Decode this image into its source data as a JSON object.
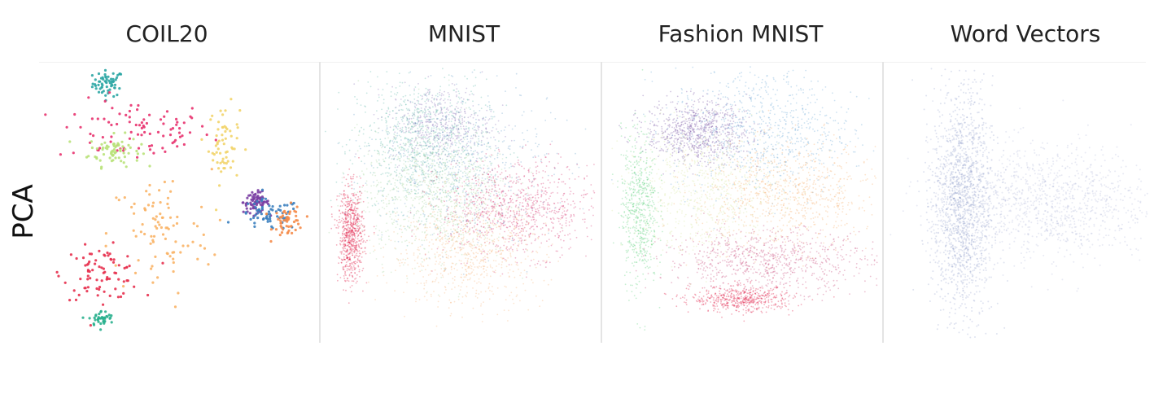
{
  "row_label": "PCA",
  "columns": [
    {
      "title": "COIL20"
    },
    {
      "title": "MNIST"
    },
    {
      "title": "Fashion MNIST"
    },
    {
      "title": "Word Vectors"
    }
  ],
  "chart_data": [
    {
      "type": "scatter",
      "title": "COIL20",
      "method": "PCA",
      "grid": false,
      "legend": "none",
      "clusters": [
        {
          "color": "#2ca6a4",
          "center": [
            -0.55,
            0.92
          ],
          "spread": [
            0.06,
            0.05
          ],
          "n": 60
        },
        {
          "color": "#e8336f",
          "center": [
            -0.35,
            0.55
          ],
          "spread": [
            0.3,
            0.12
          ],
          "n": 90
        },
        {
          "color": "#b9e27a",
          "center": [
            -0.5,
            0.4
          ],
          "spread": [
            0.1,
            0.06
          ],
          "n": 70
        },
        {
          "color": "#f2d46a",
          "center": [
            0.35,
            0.45
          ],
          "spread": [
            0.06,
            0.15
          ],
          "n": 60
        },
        {
          "color": "#7b3fa3",
          "center": [
            0.6,
            0.0
          ],
          "spread": [
            0.05,
            0.04
          ],
          "n": 80
        },
        {
          "color": "#3b7fbf",
          "center": [
            0.7,
            -0.1
          ],
          "spread": [
            0.12,
            0.06
          ],
          "n": 70
        },
        {
          "color": "#f58c4a",
          "center": [
            0.85,
            -0.15
          ],
          "spread": [
            0.06,
            0.06
          ],
          "n": 50
        },
        {
          "color": "#e7304e",
          "center": [
            -0.6,
            -0.55
          ],
          "spread": [
            0.15,
            0.1
          ],
          "n": 80
        },
        {
          "color": "#f9b467",
          "center": [
            -0.15,
            -0.25
          ],
          "spread": [
            0.2,
            0.25
          ],
          "n": 90
        },
        {
          "color": "#2ab08e",
          "center": [
            -0.6,
            -0.9
          ],
          "spread": [
            0.05,
            0.03
          ],
          "n": 40
        }
      ]
    },
    {
      "type": "scatter",
      "title": "MNIST",
      "method": "PCA",
      "grid": false,
      "legend": "none",
      "clusters": [
        {
          "color": "#5fb7a8",
          "center": [
            -0.3,
            0.45
          ],
          "spread": [
            0.25,
            0.25
          ],
          "n": 900
        },
        {
          "color": "#8a72b8",
          "center": [
            -0.15,
            0.6
          ],
          "spread": [
            0.2,
            0.15
          ],
          "n": 500
        },
        {
          "color": "#a8d8a0",
          "center": [
            -0.2,
            0.05
          ],
          "spread": [
            0.3,
            0.25
          ],
          "n": 900
        },
        {
          "color": "#d6336f",
          "center": [
            0.45,
            -0.05
          ],
          "spread": [
            0.3,
            0.18
          ],
          "n": 900
        },
        {
          "color": "#f7b47a",
          "center": [
            0.05,
            -0.4
          ],
          "spread": [
            0.3,
            0.2
          ],
          "n": 700
        },
        {
          "color": "#e0153e",
          "center": [
            -0.85,
            -0.25
          ],
          "spread": [
            0.05,
            0.18
          ],
          "n": 700
        },
        {
          "color": "#6aa0cc",
          "center": [
            0.0,
            0.3
          ],
          "spread": [
            0.35,
            0.3
          ],
          "n": 500
        }
      ]
    },
    {
      "type": "scatter",
      "title": "Fashion MNIST",
      "method": "PCA",
      "grid": false,
      "legend": "none",
      "clusters": [
        {
          "color": "#7a5aa6",
          "center": [
            -0.35,
            0.55
          ],
          "spread": [
            0.2,
            0.12
          ],
          "n": 800
        },
        {
          "color": "#6ea9d8",
          "center": [
            0.15,
            0.55
          ],
          "spread": [
            0.35,
            0.25
          ],
          "n": 800
        },
        {
          "color": "#5cd27a",
          "center": [
            -0.8,
            -0.05
          ],
          "spread": [
            0.07,
            0.3
          ],
          "n": 600
        },
        {
          "color": "#f6ae6c",
          "center": [
            0.35,
            0.05
          ],
          "spread": [
            0.35,
            0.2
          ],
          "n": 800
        },
        {
          "color": "#c94a7a",
          "center": [
            0.2,
            -0.45
          ],
          "spread": [
            0.4,
            0.12
          ],
          "n": 800
        },
        {
          "color": "#e0153e",
          "center": [
            0.0,
            -0.75
          ],
          "spread": [
            0.2,
            0.05
          ],
          "n": 500
        },
        {
          "color": "#d9e9a3",
          "center": [
            -0.3,
            0.1
          ],
          "spread": [
            0.3,
            0.25
          ],
          "n": 700
        }
      ]
    },
    {
      "type": "scatter",
      "title": "Word Vectors",
      "method": "PCA",
      "grid": false,
      "legend": "none",
      "clusters": [
        {
          "color": "#4f62ad",
          "center": [
            -0.45,
            0.0
          ],
          "spread": [
            0.12,
            0.45
          ],
          "n": 1600
        },
        {
          "color": "#7e8cc4",
          "center": [
            0.2,
            0.0
          ],
          "spread": [
            0.45,
            0.22
          ],
          "n": 1200
        }
      ]
    }
  ]
}
